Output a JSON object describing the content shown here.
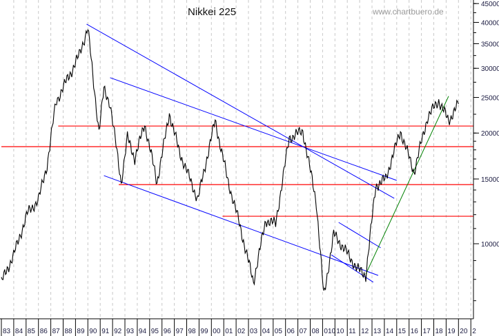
{
  "chart_data": {
    "type": "line",
    "title": "Nikkei 225",
    "watermark": "www.chartbuero.de",
    "y_scale": "log",
    "ylim": [
      6250,
      46000
    ],
    "xlim": [
      1983,
      2021.4
    ],
    "grid": "vertical dashed per year",
    "y_ticks": [
      45000,
      40000,
      35000,
      30000,
      25000,
      20000,
      15000,
      10000
    ],
    "y_tick_labels": [
      "45000",
      "40000",
      "35000",
      "30000",
      "25000",
      "20000",
      "15000",
      "10000"
    ],
    "x_tick_labels": [
      "83",
      "84",
      "85",
      "86",
      "87",
      "88",
      "89",
      "90",
      "91",
      "92",
      "93",
      "94",
      "95",
      "96",
      "97",
      "98",
      "99",
      "00",
      "01",
      "02",
      "03",
      "04",
      "05",
      "06",
      "07",
      "08",
      "010",
      "10",
      "11",
      "12",
      "13",
      "14",
      "15",
      "16",
      "17",
      "18",
      "19",
      "20",
      "2"
    ],
    "series": [
      {
        "color": "#000000",
        "points": [
          [
            1983.0,
            7860
          ],
          [
            1984.0,
            9330
          ],
          [
            1985.1,
            12090
          ],
          [
            1986.0,
            13180
          ],
          [
            1986.7,
            16360
          ],
          [
            1987.4,
            24080
          ],
          [
            1987.9,
            26280
          ],
          [
            1988.5,
            28640
          ],
          [
            1989.3,
            32600
          ],
          [
            1990.0,
            38700
          ],
          [
            1990.4,
            28640
          ],
          [
            1990.9,
            20250
          ],
          [
            1991.3,
            26280
          ],
          [
            1991.8,
            24080
          ],
          [
            1992.7,
            14680
          ],
          [
            1993.2,
            19440
          ],
          [
            1993.8,
            17060
          ],
          [
            1994.6,
            21180
          ],
          [
            1995.6,
            14690
          ],
          [
            1996.6,
            22600
          ],
          [
            1997.4,
            17820
          ],
          [
            1998.9,
            13180
          ],
          [
            2000.3,
            21620
          ],
          [
            2001.3,
            15000
          ],
          [
            2002.2,
            11580
          ],
          [
            2003.4,
            7860
          ],
          [
            2004.4,
            11580
          ],
          [
            2005.2,
            11330
          ],
          [
            2006.3,
            19400
          ],
          [
            2007.4,
            20250
          ],
          [
            2008.5,
            12930
          ],
          [
            2009.1,
            7200
          ],
          [
            2009.9,
            10620
          ],
          [
            2010.7,
            9750
          ],
          [
            2011.8,
            8550
          ],
          [
            2012.5,
            8200
          ],
          [
            2013.3,
            14370
          ],
          [
            2014.1,
            14990
          ],
          [
            2015.3,
            20250
          ],
          [
            2016.4,
            15650
          ],
          [
            2017.5,
            22100
          ],
          [
            2018.4,
            24500
          ],
          [
            2019.2,
            21600
          ],
          [
            2020.0,
            24000
          ]
        ]
      }
    ],
    "horizontal_lines": [
      {
        "color": "#ff0000",
        "value": 20900,
        "from": 1987.6
      },
      {
        "color": "#ff0000",
        "value": 18370,
        "from": 1983
      },
      {
        "color": "#ff0000",
        "value": 14480,
        "from": 1992.5
      },
      {
        "color": "#ff0000",
        "value": 11880,
        "from": 2000.9
      }
    ],
    "trend_lines": [
      {
        "color": "#0000ff",
        "from": [
          1989.9,
          39560
        ],
        "to": [
          2014.8,
          13290
        ]
      },
      {
        "color": "#0000ff",
        "from": [
          1991.8,
          28290
        ],
        "to": [
          2015.0,
          14870
        ]
      },
      {
        "color": "#0000ff",
        "from": [
          1991.3,
          15320
        ],
        "to": [
          2013.5,
          8200
        ]
      },
      {
        "color": "#0000ff",
        "from": [
          2010.3,
          11430
        ],
        "to": [
          2013.7,
          9750
        ]
      },
      {
        "color": "#0000ff",
        "from": [
          2009.7,
          9330
        ],
        "to": [
          2013.1,
          7860
        ]
      },
      {
        "color": "#008000",
        "from": [
          2012.5,
          8270
        ],
        "to": [
          2019.2,
          25200
        ]
      }
    ]
  }
}
